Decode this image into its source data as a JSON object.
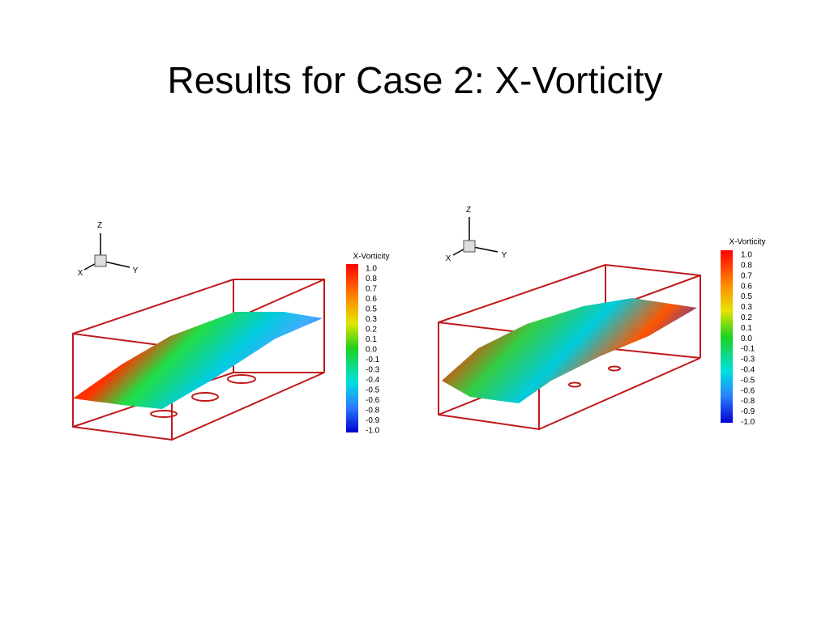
{
  "header": {
    "title": "Results for Case 2: X-Vorticity"
  },
  "panels": [
    {
      "axes": {
        "z": "Z",
        "y": "Y",
        "x": "X"
      },
      "legend": {
        "title": "X-Vorticity",
        "labels": [
          "1.0",
          "0.8",
          "0.7",
          "0.6",
          "0.5",
          "0.3",
          "0.2",
          "0.1",
          "0.0",
          "-0.1",
          "-0.3",
          "-0.4",
          "-0.5",
          "-0.6",
          "-0.8",
          "-0.9",
          "-1.0"
        ]
      }
    },
    {
      "axes": {
        "z": "Z",
        "y": "Y",
        "x": "X"
      },
      "legend": {
        "title": "X-Vorticity",
        "labels": [
          "1.0",
          "0.8",
          "0.7",
          "0.6",
          "0.5",
          "0.3",
          "0.2",
          "0.1",
          "0.0",
          "-0.1",
          "-0.3",
          "-0.4",
          "-0.5",
          "-0.6",
          "-0.8",
          "-0.9",
          "-1.0"
        ]
      }
    }
  ]
}
